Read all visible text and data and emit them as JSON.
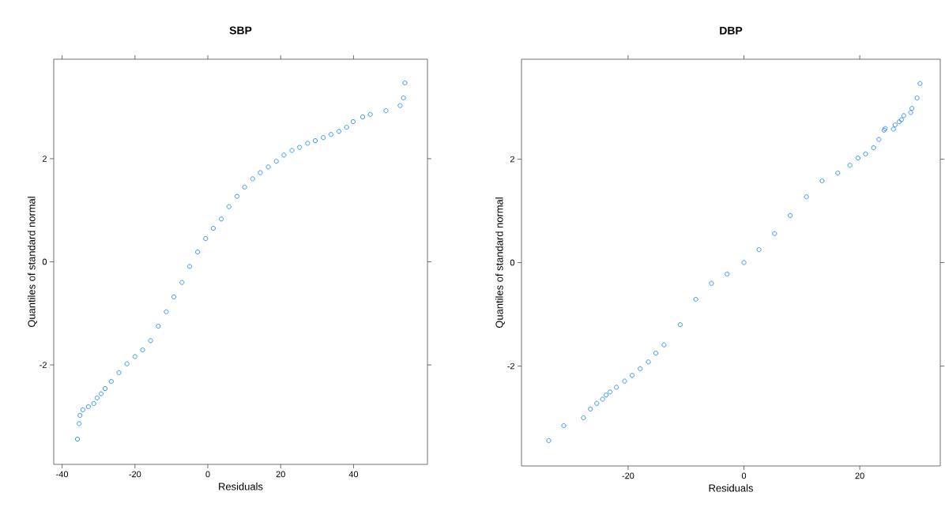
{
  "chart_data": [
    {
      "type": "scatter",
      "title": "SBP",
      "xlabel": "Residuals",
      "ylabel": "Quantiles of standard normal",
      "marker": "circle",
      "grid": false,
      "xlim": [
        -42.3,
        60.3
      ],
      "ylim": [
        -3.93,
        3.93
      ],
      "xticks": [
        -40,
        -20,
        0,
        20,
        40
      ],
      "yticks": [
        -2,
        0,
        2
      ],
      "series": [
        {
          "color": "#1e88ff",
          "x": [
            -35.8,
            -35.3,
            -35.1,
            -34.3,
            -32.8,
            -31.3,
            -30.4,
            -29.3,
            -28.2,
            -26.5,
            -24.4,
            -22.2,
            -20,
            -17.9,
            -15.7,
            -13.6,
            -11.4,
            -9.3,
            -7.1,
            -5,
            -2.8,
            -0.6,
            1.5,
            3.7,
            5.8,
            8,
            10.1,
            12.3,
            14.4,
            16.6,
            18.8,
            20.9,
            23.1,
            25.2,
            27.4,
            29.5,
            31.7,
            33.8,
            36,
            38.1,
            39.9,
            42.5,
            44.6,
            48.9,
            52.8,
            53.7,
            54.1
          ],
          "values": [
            -3.44,
            -3.14,
            -2.98,
            -2.87,
            -2.81,
            -2.75,
            -2.64,
            -2.56,
            -2.46,
            -2.32,
            -2.15,
            -1.98,
            -1.84,
            -1.71,
            -1.53,
            -1.25,
            -0.97,
            -0.68,
            -0.4,
            -0.09,
            0.19,
            0.45,
            0.65,
            0.83,
            1.07,
            1.27,
            1.45,
            1.61,
            1.73,
            1.84,
            1.95,
            2.07,
            2.16,
            2.22,
            2.3,
            2.35,
            2.41,
            2.47,
            2.53,
            2.61,
            2.72,
            2.81,
            2.86,
            2.93,
            3.03,
            3.18,
            3.47
          ]
        }
      ]
    },
    {
      "type": "scatter",
      "title": "DBP",
      "xlabel": "Residuals",
      "ylabel": "Quantiles of standard normal",
      "marker": "circle",
      "grid": false,
      "xlim": [
        -38.4,
        33.9
      ],
      "ylim": [
        -3.93,
        3.93
      ],
      "xticks": [
        -20,
        0,
        20
      ],
      "yticks": [
        -2,
        0,
        2
      ],
      "series": [
        {
          "color": "#1e88ff",
          "x": [
            -33.7,
            -31.1,
            -27.7,
            -26.5,
            -25.4,
            -24.4,
            -23.8,
            -23.1,
            -22,
            -20.6,
            -19.3,
            -17.9,
            -16.5,
            -15.2,
            -13.8,
            -11,
            -8.3,
            -5.6,
            -2.9,
            0,
            2.6,
            5.3,
            8,
            10.8,
            13.5,
            16.2,
            18.3,
            19.7,
            21,
            22.4,
            23.3,
            24.2,
            24.4,
            25.8,
            26.1,
            26.8,
            27.2,
            27.6,
            28.8,
            29,
            29.9,
            30.4
          ],
          "values": [
            -3.44,
            -3.15,
            -3.0,
            -2.83,
            -2.72,
            -2.64,
            -2.56,
            -2.5,
            -2.41,
            -2.29,
            -2.18,
            -2.05,
            -1.92,
            -1.75,
            -1.59,
            -1.2,
            -0.71,
            -0.4,
            -0.22,
            0,
            0.25,
            0.56,
            0.91,
            1.27,
            1.58,
            1.73,
            1.88,
            2.02,
            2.1,
            2.22,
            2.38,
            2.56,
            2.59,
            2.58,
            2.66,
            2.72,
            2.76,
            2.84,
            2.9,
            2.98,
            3.18,
            3.46
          ]
        }
      ]
    }
  ]
}
